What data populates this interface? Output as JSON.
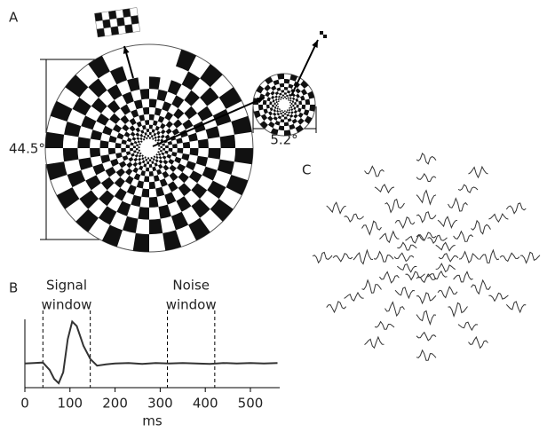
{
  "panels": {
    "a": {
      "label": "A",
      "field_size": "44.5°",
      "patch_size": "5.2°"
    },
    "c": {
      "label": "C"
    }
  },
  "chart_data": {
    "type": "line",
    "label": "B",
    "xlabel": "ms",
    "color": "#333333",
    "x": [
      0,
      20,
      40,
      55,
      65,
      75,
      85,
      95,
      105,
      115,
      130,
      145,
      160,
      180,
      200,
      230,
      260,
      290,
      320,
      350,
      380,
      410,
      440,
      470,
      500,
      530,
      560
    ],
    "values": [
      0,
      0.01,
      0.02,
      -0.15,
      -0.35,
      -0.45,
      -0.2,
      0.55,
      0.95,
      0.85,
      0.4,
      0.1,
      -0.05,
      -0.02,
      0,
      0.01,
      -0.01,
      0.01,
      0,
      0.01,
      0,
      -0.01,
      0.01,
      0,
      0.01,
      0,
      0.01
    ],
    "xlim": [
      0,
      565
    ],
    "ylim": [
      -0.55,
      1.0
    ],
    "xticks": [
      0,
      100,
      200,
      300,
      400,
      500
    ],
    "windows": [
      {
        "lines": [
          "Signal",
          "window"
        ],
        "start": 40,
        "end": 145
      },
      {
        "lines": [
          "Noise",
          "window"
        ],
        "start": 316,
        "end": 421
      }
    ]
  }
}
